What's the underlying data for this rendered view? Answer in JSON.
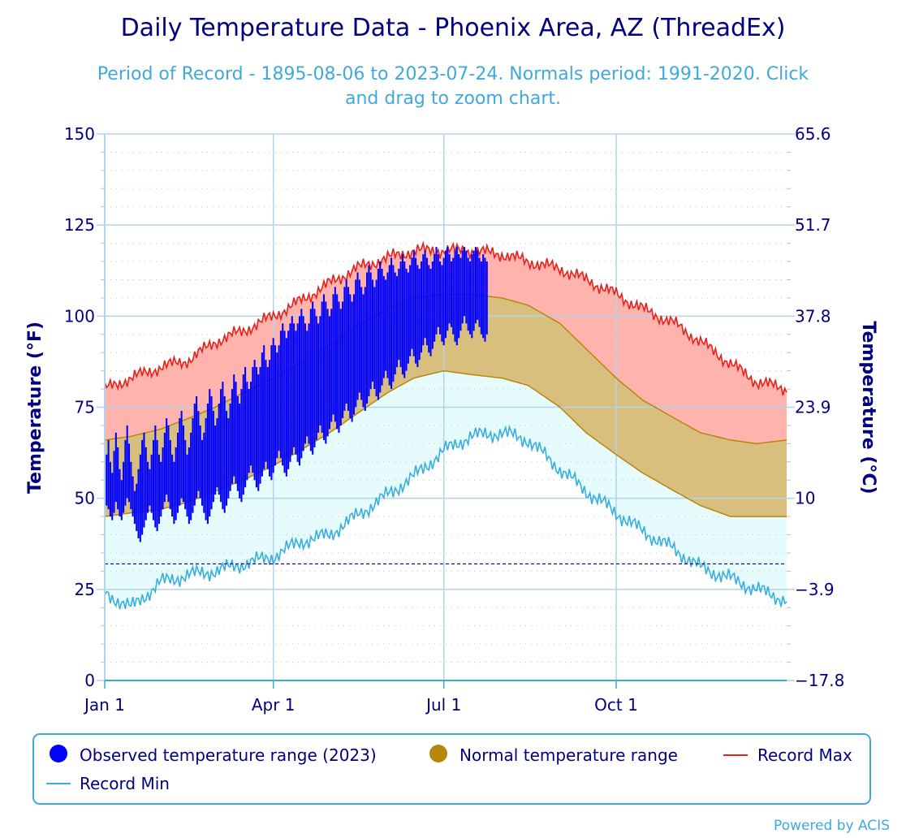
{
  "chart_data": {
    "type": "area",
    "title": "Daily Temperature Data - Phoenix Area, AZ (ThreadEx)",
    "subtitle_line1": "Period of Record - 1895-08-06 to 2023-07-24. Normals period: 1991-2020. Click",
    "subtitle_line2": "and drag to zoom chart.",
    "ylabel_left": "Temperature (°F)",
    "ylabel_right": "Temperature (°C)",
    "ylim": [
      0,
      150
    ],
    "y_ticks_left": [
      "0",
      "25",
      "50",
      "75",
      "100",
      "125",
      "150"
    ],
    "y_ticks_right": [
      "−17.8",
      "−3.9",
      "10",
      "23.9",
      "37.8",
      "51.7",
      "65.6"
    ],
    "x_tick_labels": [
      "Jan 1",
      "Apr 1",
      "Jul 1",
      "Oct 1"
    ],
    "x_tick_days": [
      1,
      91,
      182,
      274
    ],
    "freezing_line_f": 32,
    "grid": true,
    "legend_position": "bottom",
    "colors": {
      "observed": "#0000ff",
      "normal_fill": "#d9bf7e",
      "normal_line": "#b8860b",
      "normal_marker": "#b8860b",
      "record_max_line": "#e8201a",
      "record_max_fill": "#ffb3ad",
      "record_min_line": "#35aee0",
      "record_min_fill": "#e6fcfc",
      "freezing_line": "#00008b",
      "grid": "#b0d4ec",
      "minor_tick": "#c0c0c0"
    },
    "series": [
      {
        "name": "Record Max",
        "x": [
          1,
          15,
          31,
          46,
          60,
          75,
          91,
          105,
          121,
          135,
          152,
          166,
          182,
          196,
          213,
          227,
          244,
          258,
          274,
          288,
          305,
          319,
          335,
          349,
          365
        ],
        "values": [
          80,
          83,
          86,
          88,
          93,
          96,
          100,
          104,
          109,
          113,
          116,
          118,
          118,
          118,
          117,
          115,
          113,
          110,
          106,
          102,
          98,
          93,
          87,
          82,
          80
        ]
      },
      {
        "name": "Normal High",
        "x": [
          1,
          15,
          31,
          46,
          60,
          75,
          91,
          105,
          121,
          135,
          152,
          166,
          182,
          196,
          213,
          227,
          244,
          258,
          274,
          288,
          305,
          319,
          335,
          349,
          365
        ],
        "values": [
          66,
          67,
          69,
          72,
          75,
          79,
          83,
          87,
          92,
          97,
          102,
          105,
          106,
          106,
          105,
          103,
          98,
          91,
          83,
          77,
          72,
          68,
          66,
          65,
          66
        ]
      },
      {
        "name": "Normal Low",
        "x": [
          1,
          15,
          31,
          46,
          60,
          75,
          91,
          105,
          121,
          135,
          152,
          166,
          182,
          196,
          213,
          227,
          244,
          258,
          274,
          288,
          305,
          319,
          335,
          349,
          365
        ],
        "values": [
          45,
          46,
          47,
          49,
          52,
          55,
          59,
          63,
          68,
          73,
          79,
          83,
          85,
          84,
          83,
          81,
          75,
          68,
          62,
          57,
          52,
          48,
          45,
          45,
          45
        ]
      },
      {
        "name": "Record Min",
        "x": [
          1,
          15,
          31,
          46,
          60,
          75,
          91,
          105,
          121,
          135,
          152,
          166,
          182,
          196,
          213,
          227,
          244,
          258,
          274,
          288,
          305,
          319,
          335,
          349,
          365
        ],
        "values": [
          24,
          20,
          27,
          29,
          30,
          32,
          34,
          38,
          40,
          45,
          51,
          56,
          63,
          67,
          68,
          66,
          58,
          52,
          46,
          41,
          36,
          31,
          28,
          25,
          22
        ]
      }
    ],
    "observed_2023": {
      "name": "Observed temperature range (2023)",
      "day_start": 1,
      "low": [
        49,
        48,
        47,
        45,
        44,
        46,
        49,
        47,
        45,
        44,
        46,
        48,
        50,
        49,
        47,
        45,
        43,
        41,
        39,
        38,
        40,
        42,
        44,
        46,
        48,
        46,
        44,
        42,
        41,
        43,
        45,
        47,
        49,
        51,
        49,
        47,
        45,
        43,
        44,
        46,
        48,
        50,
        49,
        47,
        45,
        43,
        44,
        46,
        48,
        50,
        52,
        50,
        48,
        46,
        44,
        43,
        45,
        47,
        49,
        51,
        53,
        51,
        49,
        47,
        46,
        48,
        50,
        52,
        54,
        56,
        54,
        52,
        50,
        49,
        51,
        53,
        55,
        57,
        59,
        57,
        55,
        53,
        52,
        54,
        56,
        58,
        60,
        58,
        56,
        55,
        57,
        59,
        61,
        63,
        61,
        59,
        57,
        56,
        58,
        60,
        62,
        64,
        62,
        60,
        59,
        61,
        63,
        65,
        67,
        65,
        63,
        62,
        64,
        66,
        68,
        70,
        68,
        66,
        65,
        67,
        69,
        71,
        73,
        71,
        69,
        68,
        70,
        72,
        74,
        76,
        74,
        72,
        71,
        73,
        75,
        77,
        79,
        77,
        75,
        74,
        76,
        78,
        80,
        82,
        80,
        78,
        77,
        79,
        81,
        83,
        85,
        83,
        81,
        80,
        82,
        84,
        86,
        88,
        86,
        84,
        83,
        85,
        87,
        89,
        91,
        89,
        87,
        86,
        88,
        90,
        92,
        94,
        92,
        90,
        89,
        91,
        93,
        95,
        97,
        95,
        93,
        92,
        94,
        96,
        98,
        97,
        95,
        93,
        92,
        94,
        96,
        98,
        100,
        98,
        96,
        95,
        94,
        96,
        98,
        99,
        97,
        95,
        94,
        93,
        95
      ],
      "high": [
        58,
        62,
        66,
        60,
        57,
        63,
        68,
        64,
        58,
        55,
        60,
        66,
        70,
        65,
        60,
        56,
        52,
        54,
        58,
        62,
        66,
        68,
        64,
        60,
        58,
        62,
        66,
        70,
        66,
        62,
        60,
        64,
        68,
        72,
        70,
        66,
        62,
        60,
        64,
        68,
        72,
        74,
        70,
        66,
        62,
        64,
        68,
        72,
        76,
        78,
        74,
        70,
        66,
        68,
        72,
        76,
        80,
        78,
        74,
        70,
        72,
        76,
        80,
        82,
        78,
        74,
        72,
        76,
        80,
        84,
        82,
        78,
        76,
        80,
        84,
        86,
        82,
        80,
        82,
        86,
        88,
        86,
        84,
        86,
        90,
        92,
        88,
        86,
        88,
        92,
        94,
        92,
        90,
        92,
        96,
        98,
        96,
        94,
        96,
        98,
        100,
        98,
        96,
        98,
        100,
        102,
        100,
        98,
        96,
        98,
        102,
        104,
        102,
        100,
        98,
        100,
        104,
        106,
        104,
        102,
        100,
        102,
        106,
        108,
        106,
        104,
        102,
        104,
        108,
        110,
        108,
        106,
        104,
        106,
        110,
        112,
        110,
        108,
        106,
        108,
        112,
        114,
        112,
        110,
        108,
        110,
        113,
        115,
        113,
        111,
        110,
        112,
        114,
        116,
        114,
        112,
        111,
        113,
        115,
        117,
        115,
        113,
        112,
        114,
        116,
        118,
        116,
        114,
        113,
        115,
        117,
        118,
        116,
        114,
        113,
        115,
        117,
        119,
        117,
        115,
        114,
        116,
        118,
        119,
        117,
        115,
        116,
        118,
        119,
        117,
        116,
        118,
        119,
        118,
        116,
        115,
        117,
        118,
        119,
        118,
        116,
        115,
        117,
        116,
        115
      ]
    },
    "legend": [
      {
        "key": "observed",
        "label": "Observed temperature range (2023)"
      },
      {
        "key": "normal",
        "label": "Normal temperature range"
      },
      {
        "key": "record_max",
        "label": "Record Max"
      },
      {
        "key": "record_min",
        "label": "Record Min"
      }
    ],
    "credit": "Powered by ACIS"
  }
}
